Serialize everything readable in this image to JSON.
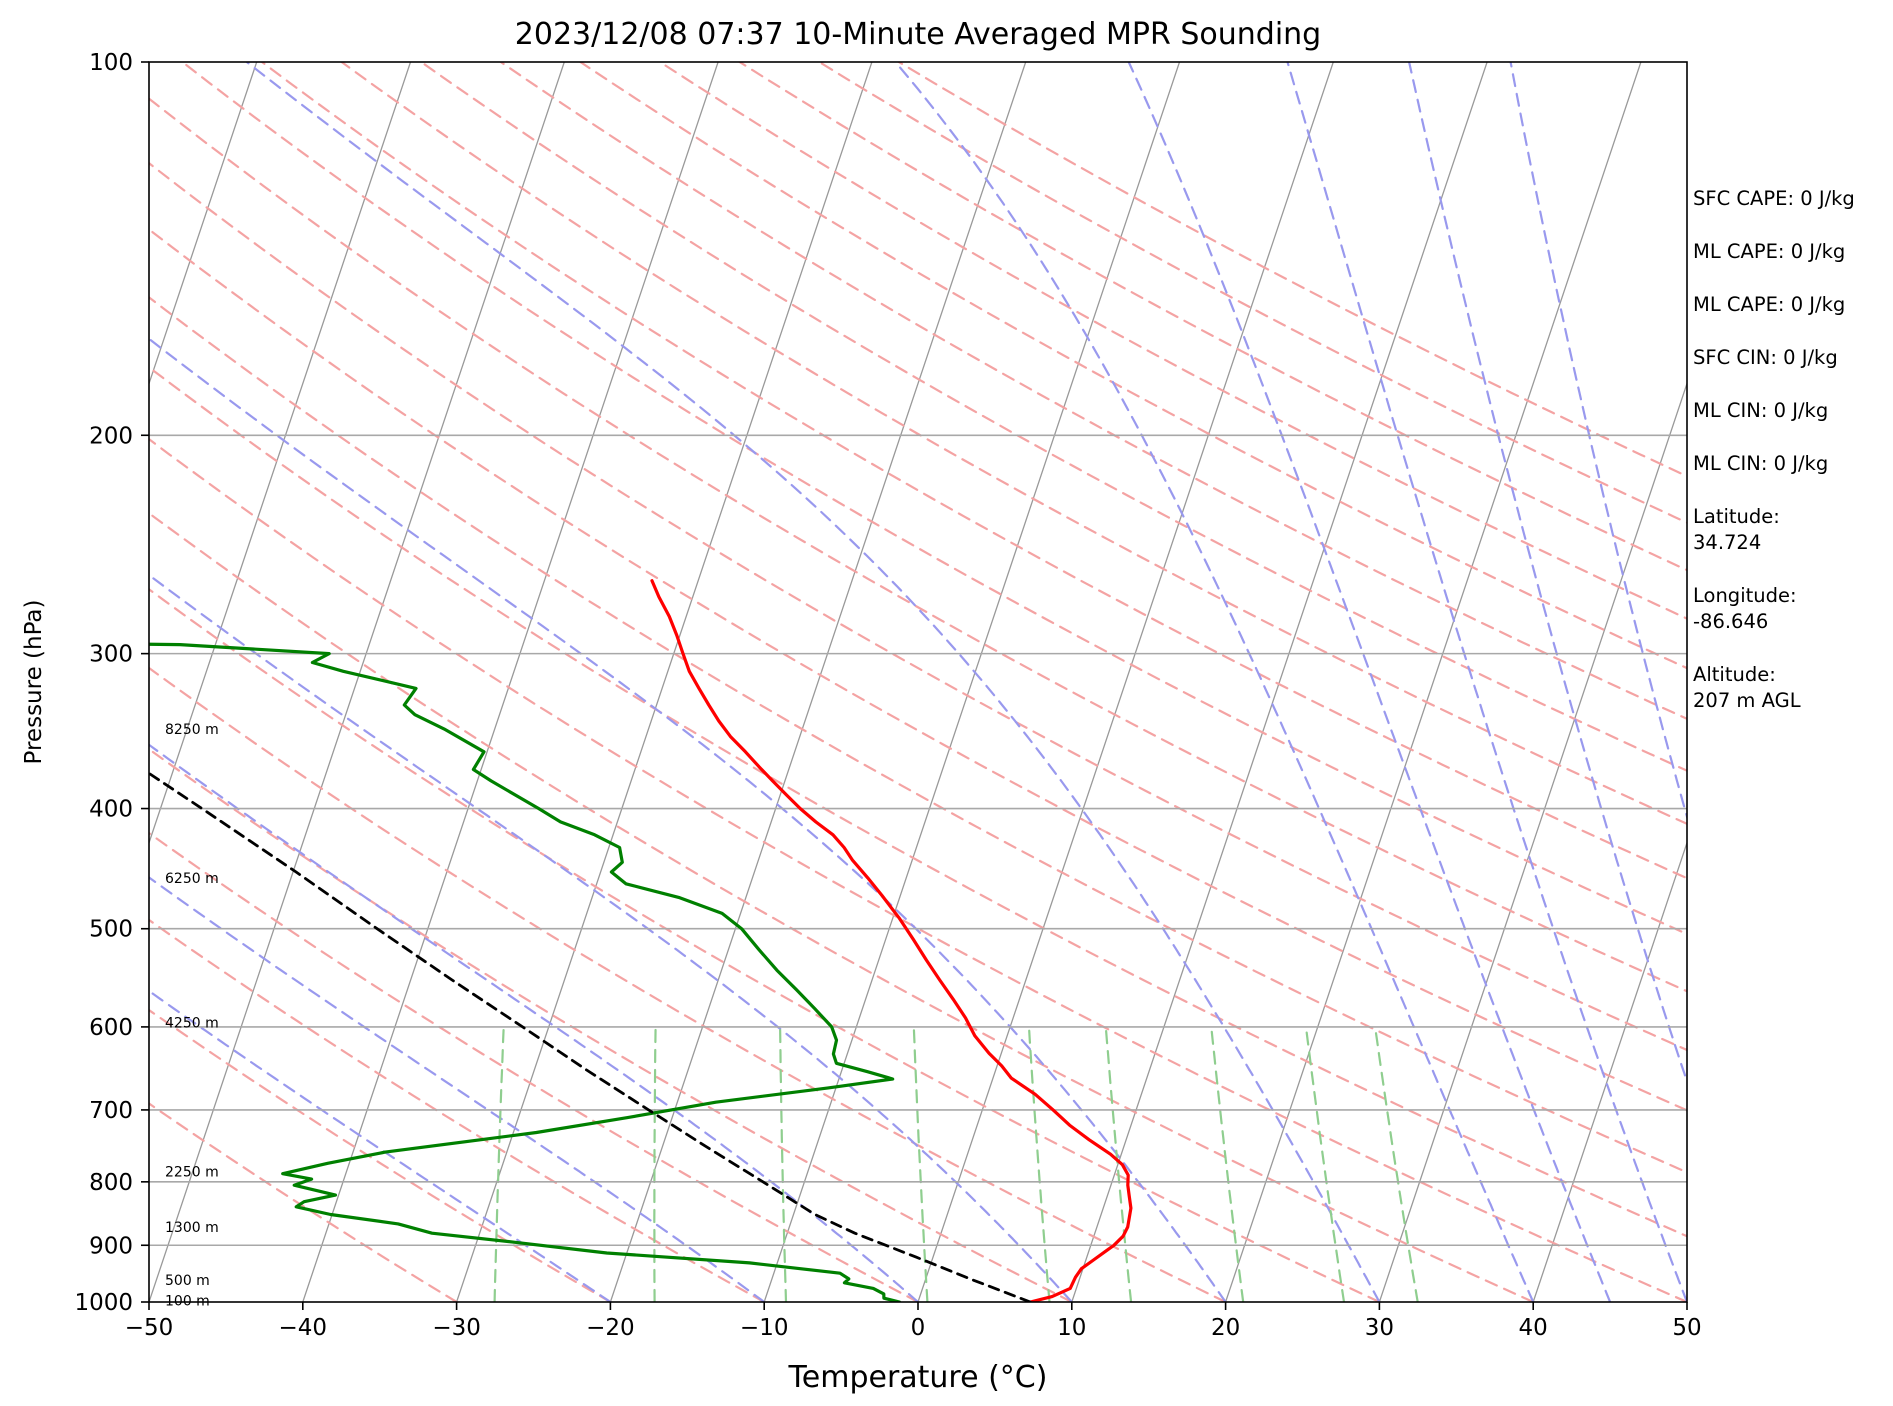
{
  "chart_data": {
    "type": "line",
    "title": "2023/12/08 07:37 10-Minute Averaged MPR Sounding",
    "xlabel": "Temperature (°C)",
    "ylabel": "Pressure (hPa)",
    "xlim": [
      -50,
      50
    ],
    "ylim": [
      1000,
      100
    ],
    "y_scale": "log",
    "skew_t": true,
    "x_ticks": [
      -50,
      -40,
      -30,
      -20,
      -10,
      0,
      10,
      20,
      30,
      40,
      50
    ],
    "x_tick_labels": [
      "−50",
      "−40",
      "−30",
      "−20",
      "−10",
      "0",
      "10",
      "20",
      "30",
      "40",
      "50"
    ],
    "y_ticks": [
      1000,
      900,
      800,
      700,
      600,
      500,
      400,
      300,
      200,
      100
    ],
    "y_tick_labels": [
      "1000",
      "900",
      "800",
      "700",
      "600",
      "500",
      "400",
      "300",
      "200",
      "100"
    ],
    "height_labels": [
      {
        "p": 997,
        "text": "100 m"
      },
      {
        "p": 960,
        "text": "500 m"
      },
      {
        "p": 870,
        "text": "1300 m"
      },
      {
        "p": 785,
        "text": "2250 m"
      },
      {
        "p": 595,
        "text": "4250 m"
      },
      {
        "p": 455,
        "text": "6250 m"
      },
      {
        "p": 345,
        "text": "8250 m"
      }
    ],
    "series": [
      {
        "color": "#ff0000",
        "points": [
          [
            1000,
            7.3
          ],
          [
            990,
            8.6
          ],
          [
            975,
            9.6
          ],
          [
            955,
            9.7
          ],
          [
            940,
            9.9
          ],
          [
            925,
            10.5
          ],
          [
            910,
            11.1
          ],
          [
            900,
            11.5
          ],
          [
            885,
            11.9
          ],
          [
            870,
            12.0
          ],
          [
            855,
            11.9
          ],
          [
            840,
            11.8
          ],
          [
            820,
            11.4
          ],
          [
            805,
            11.1
          ],
          [
            790,
            10.9
          ],
          [
            775,
            10.3
          ],
          [
            760,
            9.3
          ],
          [
            740,
            7.6
          ],
          [
            720,
            6.0
          ],
          [
            700,
            4.6
          ],
          [
            680,
            3.1
          ],
          [
            660,
            1.2
          ],
          [
            645,
            0.3
          ],
          [
            630,
            -0.8
          ],
          [
            610,
            -2.1
          ],
          [
            590,
            -3.1
          ],
          [
            570,
            -4.3
          ],
          [
            550,
            -5.6
          ],
          [
            530,
            -6.9
          ],
          [
            510,
            -8.2
          ],
          [
            490,
            -9.6
          ],
          [
            470,
            -11.2
          ],
          [
            455,
            -12.5
          ],
          [
            440,
            -13.9
          ],
          [
            430,
            -14.7
          ],
          [
            420,
            -15.7
          ],
          [
            410,
            -17.1
          ],
          [
            400,
            -18.4
          ],
          [
            390,
            -19.6
          ],
          [
            380,
            -20.8
          ],
          [
            370,
            -22.0
          ],
          [
            360,
            -23.2
          ],
          [
            350,
            -24.5
          ],
          [
            340,
            -25.6
          ],
          [
            330,
            -26.6
          ],
          [
            320,
            -27.6
          ],
          [
            310,
            -28.6
          ],
          [
            300,
            -29.4
          ],
          [
            290,
            -30.2
          ],
          [
            280,
            -31.1
          ],
          [
            270,
            -32.2
          ],
          [
            262,
            -33.0
          ]
        ]
      },
      {
        "color": "#008000",
        "points": [
          [
            1000,
            -1.2
          ],
          [
            993,
            -2.3
          ],
          [
            985,
            -2.4
          ],
          [
            975,
            -3.2
          ],
          [
            965,
            -5.2
          ],
          [
            958,
            -5.0
          ],
          [
            948,
            -5.7
          ],
          [
            930,
            -11.8
          ],
          [
            913,
            -21.3
          ],
          [
            895,
            -27.5
          ],
          [
            880,
            -33.1
          ],
          [
            865,
            -35.5
          ],
          [
            850,
            -40.1
          ],
          [
            838,
            -42.5
          ],
          [
            830,
            -42.1
          ],
          [
            820,
            -40.2
          ],
          [
            805,
            -43.1
          ],
          [
            796,
            -42.1
          ],
          [
            788,
            -44.1
          ],
          [
            773,
            -41.4
          ],
          [
            757,
            -37.9
          ],
          [
            730,
            -28.5
          ],
          [
            710,
            -22.9
          ],
          [
            690,
            -17.5
          ],
          [
            672,
            -10.5
          ],
          [
            661,
            -6.5
          ],
          [
            652,
            -8.3
          ],
          [
            642,
            -10.5
          ],
          [
            631,
            -10.9
          ],
          [
            615,
            -11.0
          ],
          [
            600,
            -11.6
          ],
          [
            580,
            -13.1
          ],
          [
            560,
            -14.7
          ],
          [
            540,
            -16.4
          ],
          [
            520,
            -18.0
          ],
          [
            500,
            -19.6
          ],
          [
            486,
            -21.2
          ],
          [
            472,
            -24.3
          ],
          [
            460,
            -28.1
          ],
          [
            450,
            -29.3
          ],
          [
            442,
            -28.8
          ],
          [
            430,
            -29.3
          ],
          [
            420,
            -31.2
          ],
          [
            410,
            -33.7
          ],
          [
            400,
            -35.4
          ],
          [
            380,
            -39.1
          ],
          [
            372,
            -40.5
          ],
          [
            360,
            -40.2
          ],
          [
            345,
            -43.3
          ],
          [
            336,
            -45.5
          ],
          [
            330,
            -46.4
          ],
          [
            320,
            -46.0
          ],
          [
            310,
            -51.1
          ],
          [
            305,
            -53.3
          ],
          [
            300,
            -52.4
          ],
          [
            295,
            -62.3
          ],
          [
            294.5,
            -68.0
          ],
          [
            294.5,
            -72.5
          ]
        ]
      },
      {
        "color": "#000000",
        "dashed": true,
        "points": [
          [
            1000,
            7.3
          ],
          [
            960,
            3.1
          ],
          [
            920,
            -1.1
          ],
          [
            880,
            -5.6
          ],
          [
            850,
            -8.6
          ],
          [
            800,
            -12.7
          ],
          [
            750,
            -17.1
          ],
          [
            700,
            -21.7
          ],
          [
            650,
            -26.6
          ],
          [
            600,
            -31.7
          ],
          [
            550,
            -37.3
          ],
          [
            500,
            -43.3
          ],
          [
            450,
            -49.8
          ],
          [
            400,
            -57.3
          ],
          [
            350,
            -65.9
          ],
          [
            300,
            -75.9
          ],
          [
            265,
            -84.5
          ]
        ]
      }
    ]
  },
  "info_panel": [
    "SFC CAPE: 0 J/kg",
    "ML CAPE: 0 J/kg",
    "ML CAPE: 0 J/kg",
    "SFC CIN: 0 J/kg",
    "ML CIN: 0 J/kg",
    "ML CIN: 0 J/kg",
    "Latitude:\n34.724",
    "Longitude:\n-86.646",
    "Altitude:\n207 m AGL"
  ],
  "colors": {
    "temperature": "#ff0000",
    "dewpoint": "#008000",
    "parcel": "#000000",
    "dry_adiabat": "#f4a3a3",
    "moist_adiabat": "#9999ee",
    "mixing_ratio": "#8fce8f",
    "isotherm": "#999999"
  }
}
